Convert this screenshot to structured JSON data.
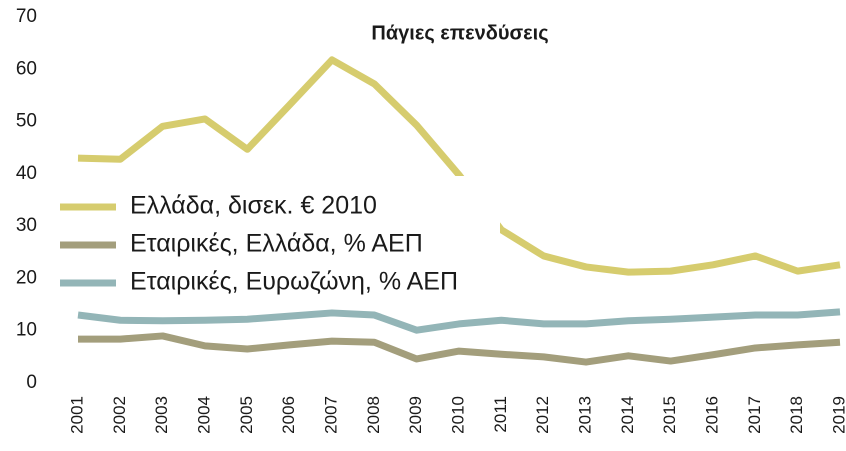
{
  "chart_data": {
    "type": "line",
    "title": "Πάγιες επενδύσεις",
    "categories": [
      "2001",
      "2002",
      "2003",
      "2004",
      "2005",
      "2006",
      "2007",
      "2008",
      "2009",
      "2010",
      "2011",
      "2012",
      "2013",
      "2014",
      "2015",
      "2016",
      "2017",
      "2018",
      "2019"
    ],
    "series": [
      {
        "name": "Ελλάδα, δισεκ. € 2010",
        "color": "#d6cc6e",
        "values": [
          43.0,
          42.8,
          49.1,
          50.5,
          44.7,
          53.2,
          61.8,
          57.2,
          49.3,
          39.8,
          29.3,
          24.3,
          22.2,
          21.2,
          21.4,
          22.6,
          24.3,
          21.4,
          22.6
        ]
      },
      {
        "name": "Εταιρικές, Ελλάδα, % ΑΕΠ",
        "color": "#a39e7c",
        "values": [
          8.4,
          8.4,
          9.0,
          7.1,
          6.5,
          7.3,
          8.0,
          7.8,
          4.6,
          6.1,
          5.5,
          5.0,
          4.0,
          5.2,
          4.2,
          5.4,
          6.7,
          7.3,
          7.8
        ]
      },
      {
        "name": "Εταιρικές, Ευρωζώνη, % ΑΕΠ",
        "color": "#93b5b7",
        "values": [
          13.0,
          12.0,
          11.9,
          12.0,
          12.2,
          12.8,
          13.4,
          13.0,
          10.1,
          11.3,
          12.0,
          11.3,
          11.3,
          11.9,
          12.2,
          12.6,
          13.0,
          13.0,
          13.6
        ]
      }
    ],
    "ylim": [
      0,
      70
    ],
    "yticks": [
      0,
      10,
      20,
      30,
      40,
      50,
      60,
      70
    ],
    "legend": "left"
  }
}
